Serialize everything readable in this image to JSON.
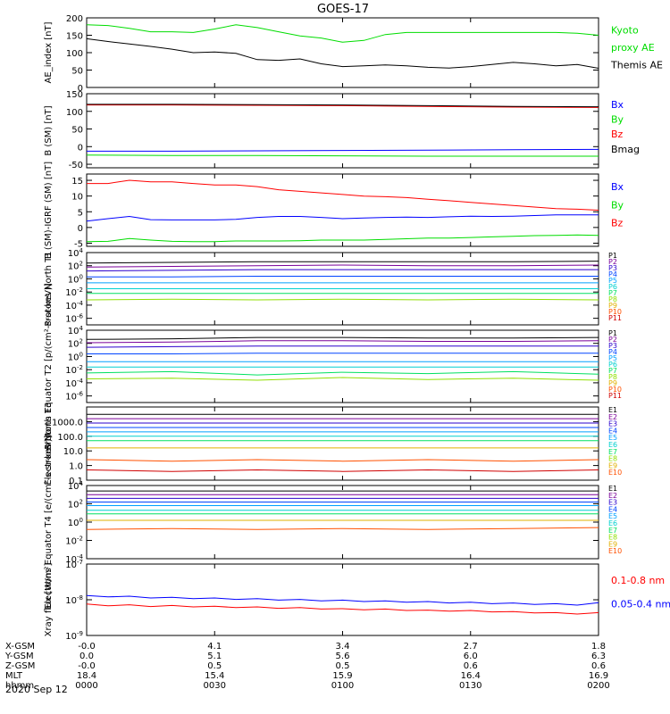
{
  "title": "GOES-17",
  "date": "2020 Sep 12",
  "footer": {
    "rows": [
      {
        "label": "X-GSM",
        "values": [
          "-0.0",
          "4.1",
          "3.4",
          "2.7",
          "1.8"
        ]
      },
      {
        "label": "Y-GSM",
        "values": [
          "0.0",
          "5.1",
          "5.6",
          "6.0",
          "6.3"
        ]
      },
      {
        "label": "Z-GSM",
        "values": [
          "-0.0",
          "0.5",
          "0.5",
          "0.6",
          "0.6"
        ]
      },
      {
        "label": "MLT",
        "values": [
          "18.4",
          "15.4",
          "15.9",
          "16.4",
          "16.9"
        ]
      },
      {
        "label": "hhmm",
        "values": [
          "0000",
          "0030",
          "0100",
          "0130",
          "0200"
        ]
      }
    ]
  },
  "colors": {
    "black": "#000000",
    "blue": "#0000ff",
    "green": "#00dd00",
    "red": "#ff0000",
    "p1": "#000000",
    "p2": "#7a0099",
    "p3": "#2b00cc",
    "p4": "#0044ff",
    "p5": "#00a0ff",
    "p6": "#00d0d0",
    "p7": "#00e060",
    "p8": "#90e000",
    "p9": "#e0b000",
    "p10": "#ff5000",
    "p11": "#d00000"
  },
  "chart_data": [
    {
      "id": "ae",
      "type": "line",
      "ylabel": "AE_index [nT]",
      "ylim": [
        0,
        200
      ],
      "yticks": [
        "0",
        "50",
        "100",
        "150",
        "200"
      ],
      "x": [
        0,
        5,
        10,
        15,
        20,
        25,
        30,
        35,
        40,
        45,
        50,
        55,
        60,
        65,
        70,
        75,
        80,
        85,
        90,
        95,
        100,
        105,
        110,
        115,
        120
      ],
      "series": [
        {
          "name": "Kyoto proxy AE",
          "color": "#00dd00",
          "values": [
            180,
            178,
            170,
            160,
            160,
            158,
            168,
            180,
            172,
            160,
            148,
            142,
            130,
            135,
            152,
            158,
            158,
            158,
            158,
            158,
            158,
            158,
            158,
            156,
            150
          ]
        },
        {
          "name": "Themis AE",
          "color": "#000000",
          "values": [
            140,
            132,
            125,
            118,
            110,
            100,
            102,
            98,
            80,
            78,
            82,
            68,
            60,
            62,
            65,
            62,
            58,
            56,
            60,
            66,
            72,
            68,
            62,
            66,
            55
          ]
        }
      ],
      "legend": [
        {
          "text": "Kyoto",
          "color": "#00dd00"
        },
        {
          "text": "proxy AE",
          "color": "#00dd00"
        },
        {
          "text": "Themis AE",
          "color": "#000000"
        }
      ]
    },
    {
      "id": "bsm",
      "type": "line",
      "ylabel": "B (SM) [nT]",
      "ylim": [
        -60,
        150
      ],
      "yticks": [
        "-50",
        "0",
        "50",
        "100",
        "150"
      ],
      "x": [
        0,
        20,
        40,
        60,
        80,
        100,
        120
      ],
      "series": [
        {
          "name": "Bx",
          "color": "#0000ff",
          "values": [
            -13,
            -13,
            -12,
            -11,
            -10,
            -9,
            -8
          ]
        },
        {
          "name": "By",
          "color": "#00dd00",
          "values": [
            -24,
            -25,
            -25,
            -26,
            -27,
            -27,
            -27
          ]
        },
        {
          "name": "Bz",
          "color": "#ff0000",
          "values": [
            118,
            118,
            117,
            116,
            114,
            112,
            111
          ]
        },
        {
          "name": "Bmag",
          "color": "#000000",
          "values": [
            120,
            120,
            119,
            118,
            116,
            114,
            113
          ]
        }
      ],
      "legend": [
        {
          "text": "Bx",
          "color": "#0000ff"
        },
        {
          "text": "By",
          "color": "#00dd00"
        },
        {
          "text": "Bz",
          "color": "#ff0000"
        },
        {
          "text": "Bmag",
          "color": "#000000"
        }
      ]
    },
    {
      "id": "bigrf",
      "type": "line",
      "ylabel": "B (SM)-IGRF (SM) [nT]",
      "ylim": [
        -6,
        17
      ],
      "yticks": [
        "-5",
        "0",
        "5",
        "10",
        "15"
      ],
      "x": [
        0,
        5,
        10,
        15,
        20,
        25,
        30,
        35,
        40,
        45,
        50,
        55,
        60,
        65,
        70,
        75,
        80,
        85,
        90,
        95,
        100,
        105,
        110,
        115,
        120
      ],
      "series": [
        {
          "name": "Bx",
          "color": "#0000ff",
          "values": [
            2,
            2.8,
            3.5,
            2.5,
            2.4,
            2.4,
            2.4,
            2.6,
            3.2,
            3.5,
            3.5,
            3.2,
            2.8,
            3,
            3.2,
            3.3,
            3.2,
            3.4,
            3.6,
            3.5,
            3.6,
            3.8,
            4,
            4,
            4
          ]
        },
        {
          "name": "By",
          "color": "#00dd00",
          "values": [
            -4.5,
            -4.4,
            -3.5,
            -4,
            -4.4,
            -4.5,
            -4.5,
            -4.3,
            -4.3,
            -4.3,
            -4.2,
            -4,
            -4,
            -4,
            -3.8,
            -3.6,
            -3.4,
            -3.4,
            -3.2,
            -3,
            -2.8,
            -2.6,
            -2.5,
            -2.4,
            -2.5
          ]
        },
        {
          "name": "Bz",
          "color": "#ff0000",
          "values": [
            14,
            14,
            15,
            14.5,
            14.5,
            14,
            13.5,
            13.5,
            13,
            12,
            11.5,
            11,
            10.5,
            10,
            9.8,
            9.5,
            9,
            8.5,
            8,
            7.5,
            7,
            6.5,
            6,
            5.8,
            5.5
          ]
        }
      ],
      "legend": [
        {
          "text": "Bx",
          "color": "#0000ff"
        },
        {
          "text": "By",
          "color": "#00dd00"
        },
        {
          "text": "Bz",
          "color": "#ff0000"
        }
      ]
    },
    {
      "id": "protons_t1",
      "type": "line",
      "ylabel": "Protons North T1",
      "ylim": [
        -7,
        4
      ],
      "yticks": [
        "10^-6",
        "10^-4",
        "10^-2",
        "10^0",
        "10^2",
        "10^4"
      ],
      "x": [
        0,
        20,
        40,
        60,
        80,
        100,
        120
      ],
      "series": [
        {
          "name": "P1",
          "color": "#000000",
          "values": [
            2.4,
            2.5,
            2.6,
            2.6,
            2.6,
            2.6,
            2.7
          ]
        },
        {
          "name": "P2",
          "color": "#7a0099",
          "values": [
            1.8,
            1.9,
            2,
            2.1,
            2,
            2,
            2.1
          ]
        },
        {
          "name": "P3",
          "color": "#2b00cc",
          "values": [
            1.2,
            1.3,
            1.4,
            1.4,
            1.4,
            1.4,
            1.4
          ]
        },
        {
          "name": "P4",
          "color": "#0044ff",
          "values": [
            0.3,
            0.3,
            0.4,
            0.4,
            0.4,
            0.4,
            0.4
          ]
        },
        {
          "name": "P5",
          "color": "#00a0ff",
          "values": [
            -0.6,
            -0.6,
            -0.6,
            -0.6,
            -0.6,
            -0.6,
            -0.6
          ]
        },
        {
          "name": "P6",
          "color": "#00d0d0",
          "values": [
            -1.5,
            -1.5,
            -1.5,
            -1.5,
            -1.5,
            -1.5,
            -1.5
          ]
        },
        {
          "name": "P7",
          "color": "#00e060",
          "values": [
            -2.2,
            -2.2,
            -2.2,
            -2.2,
            -2.2,
            -2.2,
            -2.2
          ]
        },
        {
          "name": "P8",
          "color": "#90e000",
          "values": [
            -3.2,
            -3.1,
            -3.2,
            -3.1,
            -3.2,
            -3.1,
            -3.2
          ]
        }
      ],
      "legend": [
        "P1",
        "P2",
        "P3",
        "P4",
        "P5",
        "P6",
        "P7",
        "P8",
        "P9",
        "P10",
        "P11"
      ]
    },
    {
      "id": "protons_t2",
      "type": "line",
      "ylabel": "Protons Equator T2 [p/(cm²-s-sr-keV)]",
      "ylim": [
        -7,
        4
      ],
      "yticks": [
        "10^-6",
        "10^-4",
        "10^-2",
        "10^0",
        "10^2",
        "10^4"
      ],
      "x": [
        0,
        20,
        40,
        60,
        80,
        100,
        120
      ],
      "series": [
        {
          "name": "P1",
          "color": "#000000",
          "values": [
            2.6,
            2.7,
            2.9,
            2.9,
            2.8,
            2.8,
            2.9
          ]
        },
        {
          "name": "P2",
          "color": "#7a0099",
          "values": [
            2.1,
            2.2,
            2.4,
            2.4,
            2.3,
            2.3,
            2.4
          ]
        },
        {
          "name": "P3",
          "color": "#2b00cc",
          "values": [
            1.4,
            1.5,
            1.6,
            1.6,
            1.6,
            1.6,
            1.6
          ]
        },
        {
          "name": "P4",
          "color": "#0044ff",
          "values": [
            0.4,
            0.4,
            0.5,
            0.5,
            0.5,
            0.5,
            0.5
          ]
        },
        {
          "name": "P5",
          "color": "#00a0ff",
          "values": [
            -0.8,
            -0.8,
            -0.8,
            -0.8,
            -0.8,
            -0.8,
            -0.8
          ]
        },
        {
          "name": "P6",
          "color": "#00d0d0",
          "values": [
            -1.6,
            -1.6,
            -1.6,
            -1.6,
            -1.6,
            -1.6,
            -1.6
          ]
        },
        {
          "name": "P7",
          "color": "#00e060",
          "values": [
            -2.5,
            -2.3,
            -2.8,
            -2.4,
            -2.6,
            -2.3,
            -2.7
          ]
        },
        {
          "name": "P8",
          "color": "#90e000",
          "values": [
            -3.4,
            -3.3,
            -3.6,
            -3.2,
            -3.5,
            -3.3,
            -3.6
          ]
        }
      ],
      "legend": [
        "P1",
        "P2",
        "P3",
        "P4",
        "P5",
        "P6",
        "P7",
        "P8",
        "P9",
        "P10",
        "P11"
      ]
    },
    {
      "id": "electrons_t3",
      "type": "line",
      "ylabel": "Electrons North T3",
      "ylim": [
        -1,
        4
      ],
      "yticks": [
        "0.1",
        "1.0",
        "10.0",
        "100.0",
        "1000.0"
      ],
      "x": [
        0,
        20,
        40,
        60,
        80,
        100,
        120
      ],
      "series": [
        {
          "name": "E1",
          "color": "#000000",
          "values": [
            3.5,
            3.5,
            3.5,
            3.5,
            3.5,
            3.5,
            3.5
          ]
        },
        {
          "name": "E2",
          "color": "#7a0099",
          "values": [
            3.2,
            3.2,
            3.2,
            3.2,
            3.2,
            3.2,
            3.2
          ]
        },
        {
          "name": "E3",
          "color": "#2b00cc",
          "values": [
            2.9,
            2.9,
            2.9,
            2.9,
            2.9,
            2.9,
            2.9
          ]
        },
        {
          "name": "E4",
          "color": "#0044ff",
          "values": [
            2.6,
            2.6,
            2.6,
            2.6,
            2.6,
            2.6,
            2.6
          ]
        },
        {
          "name": "E5",
          "color": "#00a0ff",
          "values": [
            2.3,
            2.3,
            2.3,
            2.3,
            2.3,
            2.3,
            2.3
          ]
        },
        {
          "name": "E6",
          "color": "#00d0d0",
          "values": [
            2.0,
            2.0,
            2.0,
            2.0,
            2.0,
            2.0,
            2.0
          ]
        },
        {
          "name": "E7",
          "color": "#00e060",
          "values": [
            1.7,
            1.7,
            1.7,
            1.7,
            1.7,
            1.7,
            1.7
          ]
        },
        {
          "name": "E8",
          "color": "#e0b000",
          "values": [
            1.2,
            1.2,
            1.2,
            1.2,
            1.2,
            1.2,
            1.2
          ]
        },
        {
          "name": "E9",
          "color": "#ff5000",
          "values": [
            0.4,
            0.3,
            0.4,
            0.3,
            0.4,
            0.3,
            0.4
          ]
        },
        {
          "name": "E10",
          "color": "#d00000",
          "values": [
            -0.3,
            -0.4,
            -0.3,
            -0.4,
            -0.3,
            -0.4,
            -0.3
          ]
        }
      ],
      "legend": [
        "E1",
        "E2",
        "E3",
        "E4",
        "E5",
        "E6",
        "E7",
        "E8",
        "E9",
        "E10"
      ]
    },
    {
      "id": "electrons_t4",
      "type": "line",
      "ylabel": "Electrons Equator T4 [e/(cm²-s-sr-keV)]",
      "ylim": [
        -4,
        4
      ],
      "yticks": [
        "10^-4",
        "10^-2",
        "10^0",
        "10^2",
        "10^4"
      ],
      "x": [
        0,
        20,
        40,
        60,
        80,
        100,
        120
      ],
      "series": [
        {
          "name": "E1",
          "color": "#000000",
          "values": [
            3.4,
            3.4,
            3.4,
            3.4,
            3.4,
            3.4,
            3.4
          ]
        },
        {
          "name": "E2",
          "color": "#7a0099",
          "values": [
            3.0,
            3.0,
            3.0,
            3.0,
            3.0,
            3.0,
            3.0
          ]
        },
        {
          "name": "E3",
          "color": "#2b00cc",
          "values": [
            2.6,
            2.6,
            2.6,
            2.6,
            2.6,
            2.6,
            2.6
          ]
        },
        {
          "name": "E4",
          "color": "#0044ff",
          "values": [
            2.2,
            2.2,
            2.2,
            2.2,
            2.2,
            2.2,
            2.2
          ]
        },
        {
          "name": "E5",
          "color": "#00a0ff",
          "values": [
            1.8,
            1.8,
            1.8,
            1.8,
            1.8,
            1.8,
            1.8
          ]
        },
        {
          "name": "E6",
          "color": "#00d0d0",
          "values": [
            1.3,
            1.3,
            1.3,
            1.3,
            1.3,
            1.3,
            1.3
          ]
        },
        {
          "name": "E7",
          "color": "#00e060",
          "values": [
            0.9,
            0.9,
            0.9,
            0.9,
            0.9,
            0.9,
            0.9
          ]
        },
        {
          "name": "E8",
          "color": "#e0b000",
          "values": [
            0.2,
            0.2,
            0.2,
            0.2,
            0.2,
            0.2,
            0.2
          ]
        },
        {
          "name": "E9",
          "color": "#ff5000",
          "values": [
            -0.8,
            -0.7,
            -0.8,
            -0.7,
            -0.8,
            -0.7,
            -0.6
          ]
        }
      ],
      "legend": [
        "E1",
        "E2",
        "E3",
        "E4",
        "E5",
        "E6",
        "E7",
        "E8",
        "E9",
        "E10"
      ]
    },
    {
      "id": "xray",
      "type": "line",
      "ylabel": "Xray flux [W/m²]",
      "ylim": [
        -9,
        -7
      ],
      "yticks": [
        "10^-9",
        "10^-8",
        "10^-7"
      ],
      "x": [
        0,
        5,
        10,
        15,
        20,
        25,
        30,
        35,
        40,
        45,
        50,
        55,
        60,
        65,
        70,
        75,
        80,
        85,
        90,
        95,
        100,
        105,
        110,
        115,
        120
      ],
      "series": [
        {
          "name": "0.1-0.8 nm",
          "color": "#ff0000",
          "values": [
            -8.12,
            -8.17,
            -8.14,
            -8.19,
            -8.16,
            -8.2,
            -8.18,
            -8.22,
            -8.2,
            -8.24,
            -8.22,
            -8.26,
            -8.25,
            -8.28,
            -8.26,
            -8.3,
            -8.29,
            -8.32,
            -8.3,
            -8.34,
            -8.33,
            -8.37,
            -8.36,
            -8.4,
            -8.36
          ]
        },
        {
          "name": "0.05-0.4 nm",
          "color": "#0000ff",
          "values": [
            -7.88,
            -7.92,
            -7.9,
            -7.95,
            -7.93,
            -7.97,
            -7.95,
            -7.99,
            -7.97,
            -8.01,
            -7.99,
            -8.03,
            -8.01,
            -8.05,
            -8.03,
            -8.07,
            -8.05,
            -8.09,
            -8.07,
            -8.11,
            -8.09,
            -8.13,
            -8.11,
            -8.15,
            -8.08
          ]
        }
      ],
      "legend": [
        {
          "text": "0.1-0.8 nm",
          "color": "#ff0000"
        },
        {
          "text": "0.05-0.4 nm",
          "color": "#0000ff"
        }
      ]
    }
  ]
}
